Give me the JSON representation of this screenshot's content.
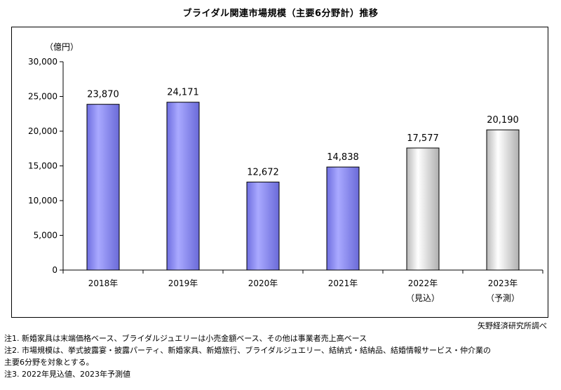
{
  "title": "ブライダル関連市場規模（主要6分野計）推移",
  "source": "矢野経済研究所調べ",
  "notes": [
    "注1.  新婚家具は末端価格ベース、ブライダルジュエリーは小売金額ベース、その他は事業者売上高ベース",
    "注2.  市場規模は、挙式披露宴・披露パーティ、新婚家具、新婚旅行、ブライダルジュエリー、結納式・結納品、結婚情報サービス・仲介業の",
    "主要6分野を対象とする。",
    "注3.  2022年見込値、2023年予測値"
  ],
  "colors": {
    "actual_bar": "#8f8ff0",
    "forecast_bar": "#dcdcdc"
  },
  "chart_data": {
    "type": "bar",
    "title": "ブライダル関連市場規模（主要6分野計）推移",
    "ylabel": "（億円）",
    "xlabel": "",
    "ylim": [
      0,
      30000
    ],
    "yticks": [
      0,
      5000,
      10000,
      15000,
      20000,
      25000,
      30000
    ],
    "ytick_labels": [
      "0",
      "5,000",
      "10,000",
      "15,000",
      "20,000",
      "25,000",
      "30,000"
    ],
    "grid": false,
    "categories": [
      "2018年",
      "2019年",
      "2020年",
      "2021年",
      "2022年",
      "2023年"
    ],
    "category_sublabels": [
      "",
      "",
      "",
      "",
      "（見込）",
      "（予測）"
    ],
    "values": [
      23870,
      24171,
      12672,
      14838,
      17577,
      20190
    ],
    "value_labels": [
      "23,870",
      "24,171",
      "12,672",
      "14,838",
      "17,577",
      "20,190"
    ],
    "bar_kind": [
      "actual",
      "actual",
      "actual",
      "actual",
      "forecast",
      "forecast"
    ]
  }
}
